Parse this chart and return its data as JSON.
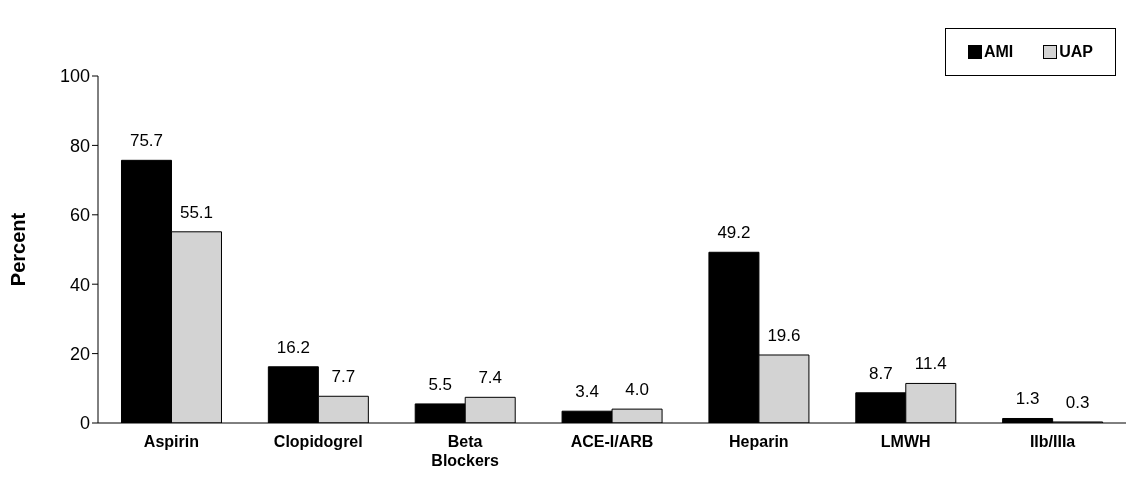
{
  "chart_data": {
    "type": "bar",
    "ylabel": "Percent",
    "categories": [
      "Aspirin",
      "Clopidogrel",
      "Beta Blockers",
      "ACE-I/ARB",
      "Heparin",
      "LMWH",
      "IIb/IIIa"
    ],
    "series": [
      {
        "name": "AMI",
        "color": "#000000",
        "values": [
          75.7,
          16.2,
          5.5,
          3.4,
          49.2,
          8.7,
          1.3
        ],
        "value_labels": [
          "75.7",
          "16.2",
          "5.5",
          "3.4",
          "49.2",
          "8.7",
          "1.3"
        ]
      },
      {
        "name": "UAP",
        "color": "#d3d3d3",
        "values": [
          55.1,
          7.7,
          7.4,
          4.0,
          19.6,
          11.4,
          0.3
        ],
        "value_labels": [
          "55.1",
          "7.7",
          "7.4",
          "4.0",
          "19.6",
          "11.4",
          "0.3"
        ]
      }
    ],
    "ylim": [
      0,
      100
    ],
    "yticks": [
      0,
      20,
      40,
      60,
      80,
      100
    ],
    "grid": false,
    "legend": "top right"
  }
}
